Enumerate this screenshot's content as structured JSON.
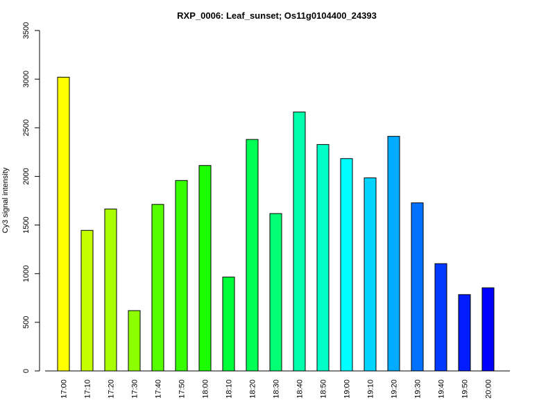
{
  "chart_data": {
    "type": "bar",
    "title": "RXP_0006: Leaf_sunset; Os11g0104400_24393",
    "xlabel": "",
    "ylabel": "Cy3 signal intensity",
    "ylim": [
      0,
      3500
    ],
    "yticks": [
      0,
      500,
      1000,
      1500,
      2000,
      2500,
      3000,
      3500
    ],
    "grid": false,
    "categories": [
      "17:00",
      "17:10",
      "17:20",
      "17:30",
      "17:40",
      "17:50",
      "18:00",
      "18:10",
      "18:20",
      "18:30",
      "18:40",
      "18:50",
      "19:00",
      "19:10",
      "19:20",
      "19:30",
      "19:40",
      "19:50",
      "20:00"
    ],
    "values": [
      3020,
      1445,
      1665,
      620,
      1712,
      1958,
      2112,
      965,
      2380,
      1618,
      2662,
      2328,
      2183,
      1985,
      2412,
      1728,
      1103,
      785,
      855
    ],
    "colors": [
      "#ffff00",
      "#c6ff00",
      "#aaff00",
      "#8dff00",
      "#55ff00",
      "#38ff00",
      "#1cff00",
      "#00ff39",
      "#00ff55",
      "#00ff72",
      "#00ffaa",
      "#00ffc6",
      "#00ffff",
      "#00d4ff",
      "#00aaff",
      "#0072ff",
      "#0039ff",
      "#001cff",
      "#0000ff"
    ]
  }
}
